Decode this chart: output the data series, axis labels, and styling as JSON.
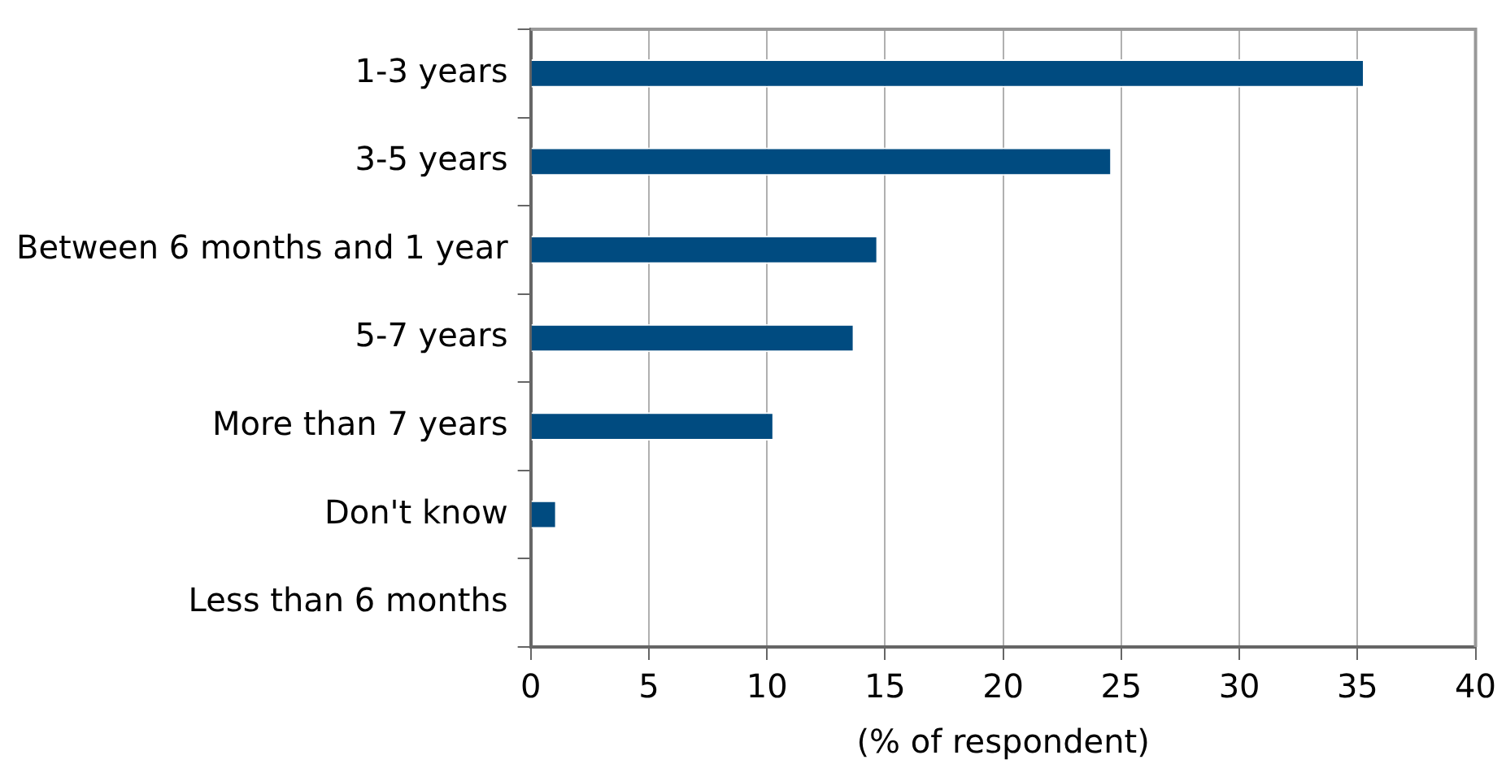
{
  "chart_data": {
    "type": "bar",
    "orientation": "horizontal",
    "xlabel": "(% of respondent)",
    "categories": [
      "1-3 years",
      "3-5 years",
      "Between 6 months and 1 year",
      "5-7 years",
      "More than 7 years",
      "Don't know",
      "Less than 6 months"
    ],
    "values": [
      35.3,
      24.6,
      14.7,
      13.7,
      10.3,
      1.1,
      0
    ],
    "color": "#004b80",
    "xlim": [
      0,
      40
    ],
    "xticks": [
      0,
      5,
      10,
      15,
      20,
      25,
      30,
      35,
      40
    ],
    "grid": "x",
    "legend": false
  }
}
